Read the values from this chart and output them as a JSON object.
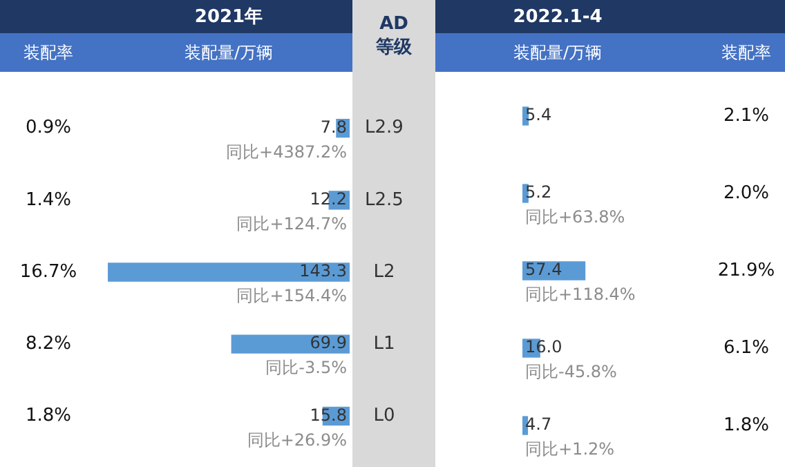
{
  "chart_data": [
    {
      "type": "bar",
      "orientation": "horizontal",
      "title": "2021年",
      "xlabel": "装配量/万辆",
      "ylabel": "AD 等级",
      "categories": [
        "L2.9",
        "L2.5",
        "L2",
        "L1",
        "L0"
      ],
      "values": [
        7.8,
        12.2,
        143.3,
        69.9,
        15.8
      ],
      "color": "#5b9bd5",
      "data_labels": true,
      "tick_labels": "y",
      "annotations": [
        "装配率",
        "0.9%",
        "1.4%",
        "16.7%",
        "8.2%",
        "1.8%",
        "同比+4387.2%",
        "同比+124.7%",
        "同比+154.4%",
        "同比-3.5%",
        "同比+26.9%"
      ]
    },
    {
      "type": "bar",
      "orientation": "horizontal",
      "title": "2022.1-4",
      "xlabel": "装配量/万辆",
      "categories": [
        null,
        null,
        null,
        null,
        null
      ],
      "values": [
        5.4,
        5.2,
        57.4,
        16.0,
        4.7
      ],
      "value_labels": [
        "5.4",
        "5.2",
        "57.4",
        "16.0",
        "4.7"
      ],
      "color": "#5b9bd5",
      "tick_labels": false,
      "annotations": [
        "装配率",
        "2.1%",
        "2.0%",
        "21.9%",
        "6.1%",
        "1.8%",
        "同比+63.8%",
        "同比+118.4%",
        "同比-45.8%",
        "同比+1.2%"
      ]
    }
  ]
}
